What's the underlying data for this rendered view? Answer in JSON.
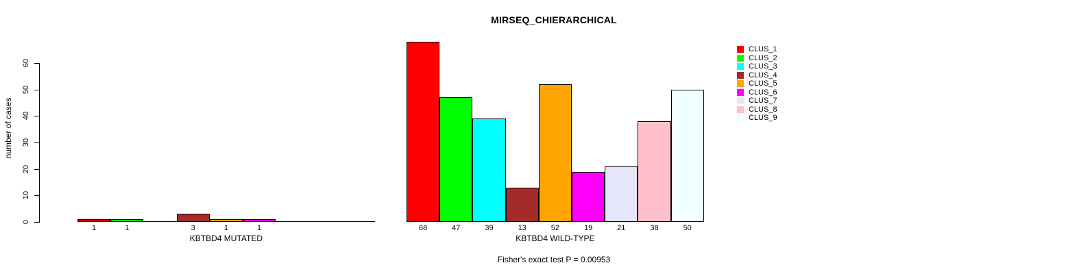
{
  "title": "MIRSEQ_CHIERARCHICAL",
  "footer_note": "Fisher's exact test P = 0.00953",
  "chart_data": {
    "type": "bar",
    "title": "MIRSEQ_CHIERARCHICAL",
    "ylabel": "number of cases",
    "ylim": [
      0,
      60
    ],
    "yticks": [
      0,
      10,
      20,
      30,
      40,
      50,
      60
    ],
    "grid": false,
    "legend_position": "right",
    "categories": [
      "CLUS_1",
      "CLUS_2",
      "CLUS_3",
      "CLUS_4",
      "CLUS_5",
      "CLUS_6",
      "CLUS_7",
      "CLUS_8",
      "CLUS_9"
    ],
    "colors": [
      "#FF0000",
      "#00FF00",
      "#00FFFF",
      "#A52A2A",
      "#FFA500",
      "#FF00FF",
      "#E6E6FA",
      "#FFC0CB",
      "#F0FFFF"
    ],
    "panels": [
      {
        "xlabel": "KBTBD4 MUTATED",
        "values": [
          1,
          1,
          0,
          3,
          1,
          1,
          0,
          0,
          0
        ],
        "bar_labels": [
          "1",
          "1",
          "",
          "3",
          "1",
          "1",
          "",
          "",
          ""
        ]
      },
      {
        "xlabel": "KBTBD4 WILD-TYPE",
        "values": [
          68,
          47,
          39,
          13,
          52,
          19,
          21,
          38,
          50
        ],
        "bar_labels": [
          "68",
          "47",
          "39",
          "13",
          "52",
          "19",
          "21",
          "38",
          "50"
        ]
      }
    ],
    "annotations": [
      "Fisher's exact test P = 0.00953"
    ]
  },
  "legend": {
    "entries": [
      {
        "label": "CLUS_1",
        "color": "#FF0000"
      },
      {
        "label": "CLUS_2",
        "color": "#00FF00"
      },
      {
        "label": "CLUS_3",
        "color": "#00FFFF"
      },
      {
        "label": "CLUS_4",
        "color": "#A52A2A"
      },
      {
        "label": "CLUS_5",
        "color": "#FFA500"
      },
      {
        "label": "CLUS_6",
        "color": "#FF00FF"
      },
      {
        "label": "CLUS_7",
        "color": "#E6E6FA"
      },
      {
        "label": "CLUS_8",
        "color": "#FFC0CB"
      },
      {
        "label": "CLUS_9",
        "color": "#F0FFFF"
      }
    ]
  }
}
